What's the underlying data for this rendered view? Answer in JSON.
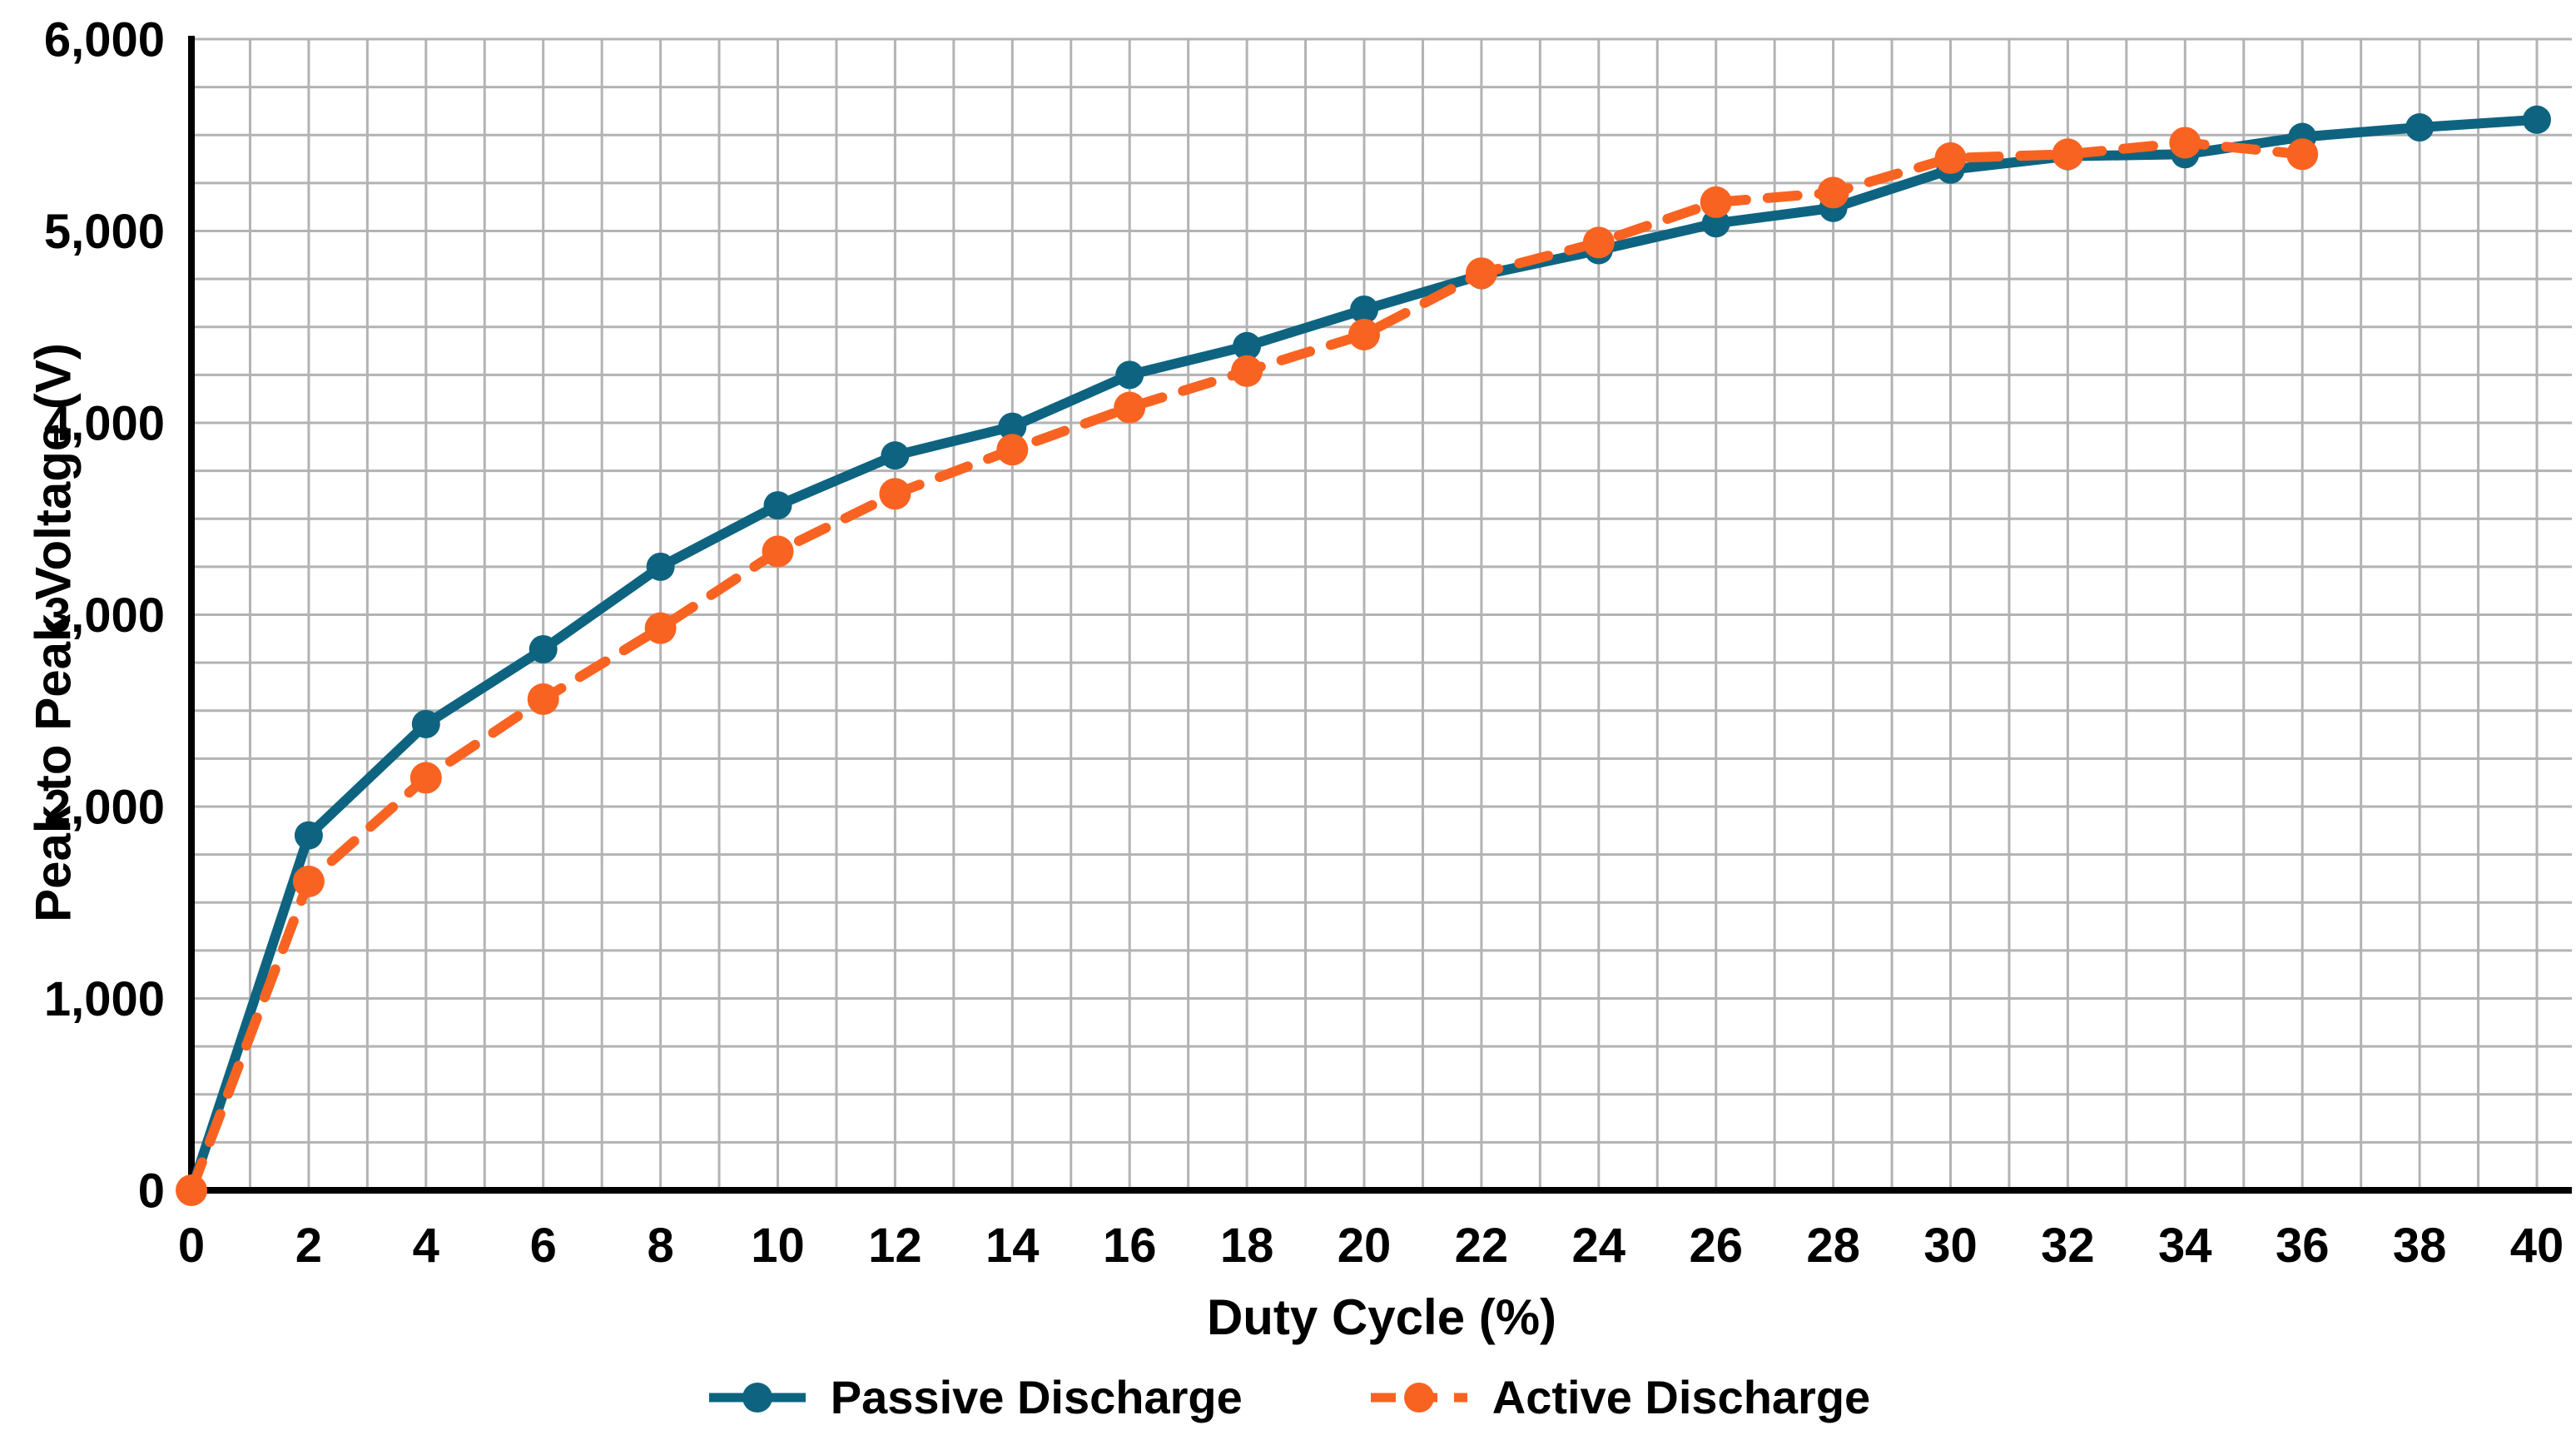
{
  "figure": {
    "background": "#FFFFFF"
  },
  "chart_data": {
    "type": "line",
    "title": "",
    "xlabel": "Duty Cycle (%)",
    "ylabel": "Peak to Peak Voltage (V)",
    "xlim": [
      0,
      40
    ],
    "ylim": [
      0,
      6000
    ],
    "x_grid_step": 1,
    "y_grid_step": 250,
    "x_label_step": 2,
    "y_label_step": 1000,
    "grid": true,
    "grid_color": "#B3B3B3",
    "axis_color": "#000000",
    "legend_position": "bottom",
    "x_ticks": [
      "0",
      "2",
      "4",
      "6",
      "8",
      "10",
      "12",
      "14",
      "16",
      "18",
      "20",
      "22",
      "24",
      "26",
      "28",
      "30",
      "32",
      "34",
      "36",
      "38",
      "40"
    ],
    "y_ticks": [
      "0",
      "1,000",
      "2,000",
      "3,000",
      "4,000",
      "5,000",
      "6,000"
    ],
    "series": [
      {
        "name": "Passive Discharge",
        "color": "#0E6480",
        "style": "solid",
        "marker": "circle",
        "x": [
          0,
          2,
          4,
          6,
          8,
          10,
          12,
          14,
          16,
          18,
          20,
          22,
          24,
          26,
          28,
          30,
          32,
          34,
          36,
          38,
          40
        ],
        "values": [
          0,
          1850,
          2430,
          2820,
          3250,
          3570,
          3830,
          3980,
          4250,
          4400,
          4590,
          4770,
          4900,
          5040,
          5120,
          5320,
          5390,
          5400,
          5490,
          5540,
          5580
        ]
      },
      {
        "name": "Active Discharge",
        "color": "#F96322",
        "style": "dashed",
        "marker": "circle",
        "x": [
          0,
          2,
          4,
          6,
          8,
          10,
          12,
          14,
          16,
          18,
          20,
          22,
          24,
          26,
          28,
          30,
          32,
          34,
          36
        ],
        "values": [
          0,
          1610,
          2150,
          2560,
          2930,
          3330,
          3630,
          3860,
          4080,
          4270,
          4460,
          4780,
          4940,
          5150,
          5200,
          5380,
          5400,
          5460,
          5400
        ]
      }
    ]
  },
  "legend": {
    "items": [
      {
        "label": "Passive Discharge"
      },
      {
        "label": "Active Discharge"
      }
    ]
  }
}
